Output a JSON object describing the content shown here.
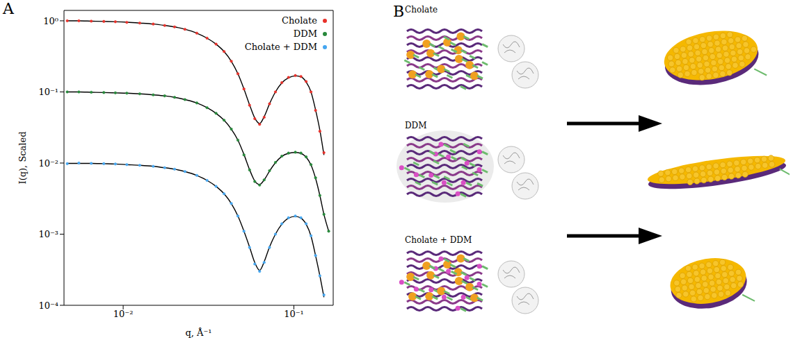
{
  "panel_labels": [
    "A",
    "B"
  ],
  "chart_data": {
    "type": "scatter",
    "log": true,
    "grid": false,
    "legend": "upper right",
    "x_label": "q, Å⁻¹",
    "y_label": "I(q), Scaled",
    "xlim": [
      0.0045,
      0.17
    ],
    "ylim": [
      0.0001,
      1.4
    ],
    "xticks": [
      {
        "value": 0.01,
        "label": "10⁻²"
      },
      {
        "value": 0.1,
        "label": "10⁻¹"
      }
    ],
    "yticks": [
      {
        "value": 0.0001,
        "label": "10⁻⁴"
      },
      {
        "value": 0.001,
        "label": "10⁻³"
      },
      {
        "value": 0.01,
        "label": "10⁻²"
      },
      {
        "value": 0.1,
        "label": "10⁻¹"
      },
      {
        "value": 1,
        "label": "10⁰"
      }
    ],
    "x": [
      0.0047,
      0.0055,
      0.0065,
      0.0077,
      0.009,
      0.0105,
      0.0125,
      0.015,
      0.0175,
      0.02,
      0.023,
      0.027,
      0.031,
      0.035,
      0.039,
      0.043,
      0.047,
      0.051,
      0.055,
      0.059,
      0.063,
      0.067,
      0.072,
      0.078,
      0.085,
      0.093,
      0.102,
      0.11,
      0.118,
      0.126,
      0.134,
      0.142,
      0.15,
      0.16
    ],
    "series": [
      {
        "name": "Cholate",
        "type": "scatter",
        "marker": "circle",
        "color": "#e8312a",
        "values": [
          1.0,
          1.0,
          0.99,
          0.98,
          0.97,
          0.95,
          0.93,
          0.9,
          0.86,
          0.82,
          0.76,
          0.67,
          0.57,
          0.47,
          0.37,
          0.27,
          0.18,
          0.11,
          0.065,
          0.042,
          0.035,
          0.044,
          0.068,
          0.1,
          0.135,
          0.16,
          0.17,
          0.165,
          0.14,
          0.1,
          0.055,
          0.028,
          0.014,
          null
        ]
      },
      {
        "name": "DDM",
        "type": "scatter",
        "marker": "circle",
        "color": "#27883a",
        "values": [
          0.1,
          0.1,
          0.099,
          0.098,
          0.097,
          0.096,
          0.094,
          0.091,
          0.088,
          0.084,
          0.078,
          0.07,
          0.06,
          0.05,
          0.04,
          0.03,
          0.021,
          0.013,
          0.008,
          0.0055,
          0.0049,
          0.0058,
          0.0078,
          0.0102,
          0.0125,
          0.0138,
          0.0142,
          0.0138,
          0.0122,
          0.0095,
          0.0062,
          0.0035,
          0.0019,
          0.0011
        ]
      },
      {
        "name": "Cholate + DDM",
        "type": "scatter",
        "marker": "circle",
        "color": "#45a6f0",
        "values": [
          0.0098,
          0.01,
          0.0099,
          0.0098,
          0.0097,
          0.0095,
          0.0093,
          0.009,
          0.0086,
          0.0082,
          0.0076,
          0.0067,
          0.0057,
          0.0047,
          0.0037,
          0.0027,
          0.0018,
          0.0011,
          0.00065,
          0.00038,
          0.0003,
          0.0004,
          0.00065,
          0.001,
          0.0014,
          0.0017,
          0.0018,
          0.0017,
          0.0014,
          0.00095,
          0.0005,
          0.00026,
          0.00014,
          null
        ]
      },
      {
        "type": "line",
        "line_style": "solid",
        "color": "#000000",
        "values": [
          1.0,
          1.0,
          0.99,
          0.98,
          0.97,
          0.955,
          0.93,
          0.9,
          0.86,
          0.82,
          0.76,
          0.67,
          0.57,
          0.47,
          0.37,
          0.27,
          0.18,
          0.11,
          0.066,
          0.043,
          0.036,
          0.045,
          0.068,
          0.1,
          0.134,
          0.158,
          0.168,
          0.163,
          0.138,
          0.1,
          0.056,
          0.029,
          0.013,
          null
        ]
      },
      {
        "type": "line",
        "line_style": "solid",
        "color": "#000000",
        "values": [
          0.1,
          0.1,
          0.099,
          0.098,
          0.097,
          0.096,
          0.094,
          0.091,
          0.088,
          0.084,
          0.078,
          0.07,
          0.06,
          0.05,
          0.04,
          0.03,
          0.021,
          0.0132,
          0.0081,
          0.0056,
          0.005,
          0.0058,
          0.0077,
          0.0101,
          0.0124,
          0.0137,
          0.0141,
          0.0137,
          0.0121,
          0.0094,
          0.0061,
          0.0035,
          0.0019,
          0.0011
        ]
      },
      {
        "type": "line",
        "line_style": "solid",
        "color": "#000000",
        "values": [
          0.0099,
          0.0099,
          0.0099,
          0.0098,
          0.0097,
          0.0095,
          0.0093,
          0.009,
          0.0086,
          0.0082,
          0.0076,
          0.0067,
          0.0057,
          0.0047,
          0.0037,
          0.0027,
          0.0018,
          0.0011,
          0.00066,
          0.0004,
          0.00031,
          0.00041,
          0.00066,
          0.001,
          0.00138,
          0.00168,
          0.00178,
          0.00168,
          0.00138,
          0.00094,
          0.0005,
          0.00026,
          0.00013,
          null
        ]
      }
    ]
  },
  "diagram": {
    "rows": [
      {
        "label": "Cholate"
      },
      {
        "label": "DDM"
      },
      {
        "label": "Cholate + DDM"
      }
    ]
  }
}
